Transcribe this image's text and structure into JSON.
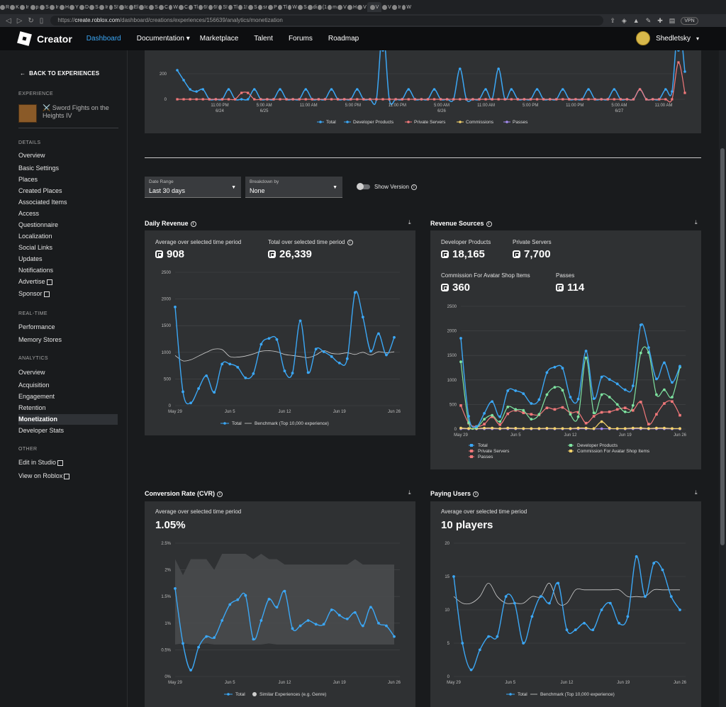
{
  "browser": {
    "url_prefix": "https://",
    "url_host": "create.roblox.com",
    "url_path": "/dashboard/creations/experiences/156639/analytics/monetization",
    "vpn_label": "VPN",
    "tab_letters": [
      "R",
      "K",
      "Ir",
      "p",
      "S",
      "Ir",
      "H",
      "Y",
      "D",
      "S",
      "Ir",
      "S!",
      "Ic",
      "El",
      "Ic",
      "S",
      "C",
      "W",
      "C",
      "Tl",
      "6!",
      "6!",
      "S!",
      "Tl",
      "1!",
      "S",
      "sr",
      "P",
      "Tl",
      "W",
      "S",
      "di",
      "(1",
      "m",
      "V",
      "H",
      "V",
      "V",
      "V",
      "Ir",
      "W"
    ]
  },
  "topnav": {
    "brand": "Creator",
    "links": [
      "Dashboard",
      "Documentation",
      "Marketplace",
      "Talent",
      "Forums",
      "Roadmap"
    ],
    "active": "Dashboard",
    "username": "Shedletsky"
  },
  "sidebar": {
    "back": "BACK TO EXPERIENCES",
    "experience_title": "EXPERIENCE",
    "experience_name": "⚔️ Sword Fights on the Heights IV",
    "sections": [
      {
        "title": "DETAILS",
        "items": [
          "Overview",
          "Basic Settings",
          "Places",
          "Created Places",
          "Associated Items",
          "Access",
          "Questionnaire",
          "Localization",
          "Social Links",
          "Updates",
          "Notifications",
          "Advertise",
          "Sponsor"
        ]
      },
      {
        "title": "REAL-TIME",
        "items": [
          "Performance",
          "Memory Stores"
        ]
      },
      {
        "title": "ANALYTICS",
        "items": [
          "Overview",
          "Acquisition",
          "Engagement",
          "Retention",
          "Monetization",
          "Developer Stats"
        ]
      },
      {
        "title": "OTHER",
        "items": [
          "Edit in Studio",
          "View on Roblox"
        ]
      }
    ],
    "selected": "Monetization"
  },
  "realtime_chart": {
    "y_ticks": [
      "200",
      "0"
    ],
    "x_labels": [
      {
        "l1": "11:00 PM",
        "l2": "6/24"
      },
      {
        "l1": "5:00 AM",
        "l2": "6/25"
      },
      {
        "l1": "11:00 AM",
        "l2": ""
      },
      {
        "l1": "5:00 PM",
        "l2": ""
      },
      {
        "l1": "11:00 PM",
        "l2": ""
      },
      {
        "l1": "5:00 AM",
        "l2": "6/26"
      },
      {
        "l1": "11:00 AM",
        "l2": ""
      },
      {
        "l1": "5:00 PM",
        "l2": ""
      },
      {
        "l1": "11:00 PM",
        "l2": ""
      },
      {
        "l1": "5:00 AM",
        "l2": "6/27"
      },
      {
        "l1": "11:00 AM",
        "l2": ""
      }
    ],
    "legend": [
      "Total",
      "Developer Products",
      "Private Servers",
      "Commissions",
      "Passes"
    ]
  },
  "filters": {
    "date_range_label": "Date Range",
    "date_range_value": "Last 30 days",
    "breakdown_label": "Breakdown by",
    "breakdown_value": "None",
    "show_version": "Show Version"
  },
  "colors": {
    "total": "#3ba7f5",
    "developer_products": "#7ee3a0",
    "private_servers": "#f2787a",
    "commissions": "#f5d36b",
    "passes": "#a48bf0",
    "benchmark": "#cfcfcf",
    "similar": "#4a4c4f"
  },
  "daily_revenue": {
    "title": "Daily Revenue",
    "avg_label": "Average over selected time period",
    "avg_value": "908",
    "total_label": "Total over selected time period",
    "total_value": "26,339",
    "legend_total": "Total",
    "legend_bench": "Benchmark (Top 10,000 experience)"
  },
  "revenue_sources": {
    "title": "Revenue Sources",
    "stats": [
      {
        "label": "Developer Products",
        "value": "18,165"
      },
      {
        "label": "Private Servers",
        "value": "7,700"
      },
      {
        "label": "Commission For Avatar Shop Items",
        "value": "360"
      },
      {
        "label": "Passes",
        "value": "114"
      }
    ],
    "legend": [
      "Total",
      "Developer Products",
      "Private Servers",
      "Commission For Avatar Shop Items",
      "Passes"
    ]
  },
  "conversion_rate": {
    "title": "Conversion Rate (CVR)",
    "avg_label": "Average over selected time period",
    "avg_value": "1.05%",
    "legend_total": "Total",
    "legend_similar": "Similar Experiences (e.g. Genre)"
  },
  "paying_users": {
    "title": "Paying Users",
    "avg_label": "Average over selected time period",
    "avg_value": "10 players",
    "legend_total": "Total",
    "legend_bench": "Benchmark (Top 10,000 experience)"
  },
  "chart_data": [
    {
      "type": "line",
      "title": "Daily Revenue",
      "x_tick_labels": [
        "May 29",
        "Jun 5",
        "Jun 12",
        "Jun 19",
        "Jun 26"
      ],
      "y_ticks": [
        0,
        500,
        1000,
        1500,
        2000,
        2500
      ],
      "ylim": [
        0,
        2500
      ],
      "series": [
        {
          "name": "Total",
          "values": [
            1850,
            260,
            50,
            320,
            560,
            250,
            780,
            780,
            720,
            520,
            600,
            1150,
            1260,
            1240,
            650,
            610,
            1590,
            620,
            1060,
            1010,
            920,
            800,
            880,
            2120,
            1660,
            1020,
            1350,
            950,
            1280
          ]
        },
        {
          "name": "Benchmark (Top 10,000 experience)",
          "values": [
            940,
            840,
            860,
            930,
            1000,
            1060,
            1050,
            920,
            910,
            930,
            970,
            1020,
            1030,
            1010,
            960,
            940,
            920,
            900,
            950,
            1030,
            980,
            970,
            990,
            960,
            1000,
            950,
            1010,
            990,
            1010
          ]
        }
      ],
      "legend": "bottom"
    },
    {
      "type": "line",
      "title": "Revenue Sources",
      "x_tick_labels": [
        "May 29",
        "Jun 5",
        "Jun 12",
        "Jun 19",
        "Jun 26"
      ],
      "y_ticks": [
        0,
        500,
        1000,
        1500,
        2000,
        2500
      ],
      "ylim": [
        0,
        2500
      ],
      "series": [
        {
          "name": "Total",
          "values": [
            1850,
            260,
            50,
            320,
            560,
            250,
            780,
            780,
            720,
            520,
            600,
            1150,
            1260,
            1240,
            650,
            610,
            1590,
            620,
            1060,
            1010,
            920,
            800,
            880,
            2120,
            1660,
            1020,
            1350,
            950,
            1280
          ]
        },
        {
          "name": "Developer Products",
          "values": [
            1370,
            130,
            30,
            200,
            280,
            150,
            450,
            400,
            380,
            200,
            300,
            700,
            850,
            790,
            300,
            250,
            1450,
            330,
            700,
            650,
            500,
            350,
            480,
            1550,
            1560,
            700,
            800,
            650,
            1260
          ]
        },
        {
          "name": "Private Servers",
          "values": [
            480,
            120,
            50,
            100,
            250,
            90,
            310,
            380,
            330,
            300,
            290,
            430,
            400,
            440,
            330,
            340,
            120,
            260,
            340,
            350,
            400,
            430,
            380,
            550,
            100,
            300,
            520,
            560,
            280
          ]
        },
        {
          "name": "Commission For Avatar Shop Items",
          "values": [
            20,
            10,
            10,
            20,
            20,
            10,
            20,
            15,
            10,
            10,
            10,
            15,
            10,
            10,
            10,
            20,
            20,
            10,
            150,
            20,
            10,
            10,
            20,
            20,
            10,
            20,
            20,
            10,
            10
          ]
        },
        {
          "name": "Passes",
          "values": [
            5,
            3,
            3,
            5,
            5,
            3,
            5,
            5,
            3,
            3,
            3,
            5,
            3,
            3,
            3,
            5,
            5,
            3,
            5,
            5,
            3,
            3,
            5,
            5,
            3,
            5,
            5,
            3,
            3
          ]
        }
      ],
      "legend": "bottom"
    },
    {
      "type": "line",
      "title": "Conversion Rate (CVR)",
      "x_tick_labels": [
        "May 29",
        "Jun 5",
        "Jun 12",
        "Jun 19",
        "Jun 26"
      ],
      "y_ticks": [
        "0%",
        "0.5%",
        "1%",
        "1.5%",
        "2%",
        "2.5%"
      ],
      "ylim": [
        0,
        2.5
      ],
      "series": [
        {
          "name": "Total",
          "values": [
            1.65,
            0.62,
            0.12,
            0.55,
            0.75,
            0.73,
            1.05,
            1.35,
            1.44,
            1.52,
            0.7,
            1.05,
            1.45,
            1.3,
            1.6,
            0.9,
            0.95,
            1.05,
            0.98,
            0.98,
            1.25,
            1.15,
            1.08,
            1.2,
            0.95,
            1.3,
            1.0,
            0.95,
            0.75
          ]
        },
        {
          "name": "Similar Experiences (e.g. Genre)",
          "upper": [
            2.2,
            1.9,
            2.2,
            2.2,
            2.2,
            2.0,
            2.3,
            2.3,
            2.3,
            2.3,
            2.2,
            2.3,
            2.2,
            2.2,
            2.1,
            2.1,
            2.1,
            2.1,
            2.1,
            2.1,
            2.1,
            2.1,
            2.1,
            2.2,
            2.1,
            2.1,
            2.1,
            2.1,
            2.1
          ],
          "lower": [
            0.6,
            0.62,
            0.6,
            0.6,
            0.62,
            0.6,
            0.6,
            0.6,
            0.6,
            0.6,
            0.6,
            0.6,
            0.62,
            0.6,
            0.6,
            0.6,
            0.6,
            0.6,
            0.6,
            0.6,
            0.6,
            0.6,
            0.6,
            0.6,
            0.6,
            0.6,
            0.6,
            0.6,
            0.6
          ]
        }
      ],
      "legend": "bottom"
    },
    {
      "type": "line",
      "title": "Paying Users",
      "x_tick_labels": [
        "May 29",
        "Jun 5",
        "Jun 12",
        "Jun 19",
        "Jun 26"
      ],
      "y_ticks": [
        0,
        5,
        10,
        15,
        20
      ],
      "ylim": [
        0,
        20
      ],
      "series": [
        {
          "name": "Total",
          "values": [
            15,
            5,
            1,
            4,
            6,
            6,
            12,
            11,
            5,
            9,
            12,
            11,
            14,
            7,
            7,
            8,
            7,
            10,
            11,
            8,
            9,
            18,
            12,
            17,
            16,
            12,
            10
          ]
        },
        {
          "name": "Benchmark (Top 10,000 experience)",
          "values": [
            12,
            11,
            11,
            12,
            14,
            12,
            11,
            11,
            11,
            12,
            12,
            14,
            11,
            11,
            13,
            13,
            13,
            13,
            13,
            13,
            12,
            12,
            12,
            13,
            13,
            13,
            13
          ]
        }
      ],
      "legend": "bottom"
    }
  ]
}
